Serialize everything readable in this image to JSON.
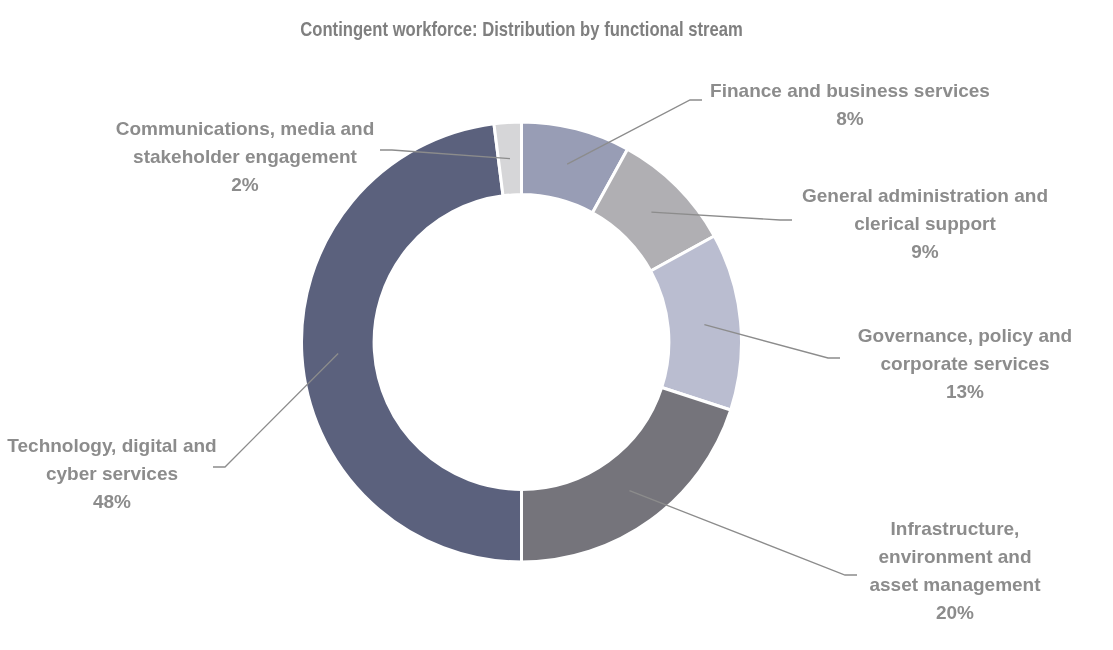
{
  "chart_data": {
    "type": "donut",
    "title": "Contingent workforce: Distribution by functional stream",
    "categories": [
      "Finance and business services",
      "General administration and clerical support",
      "Governance, policy and corporate services",
      "Infrastructure, environment and asset management",
      "Technology, digital and cyber services",
      "Communications, media and stakeholder engagement"
    ],
    "values": [
      8,
      9,
      13,
      20,
      48,
      2
    ],
    "value_labels": [
      "8%",
      "9%",
      "13%",
      "20%",
      "48%",
      "2%"
    ],
    "colors": [
      "#989db5",
      "#b0afb3",
      "#babdd0",
      "#75747b",
      "#5b617d",
      "#d6d6d8"
    ],
    "legend": false
  }
}
